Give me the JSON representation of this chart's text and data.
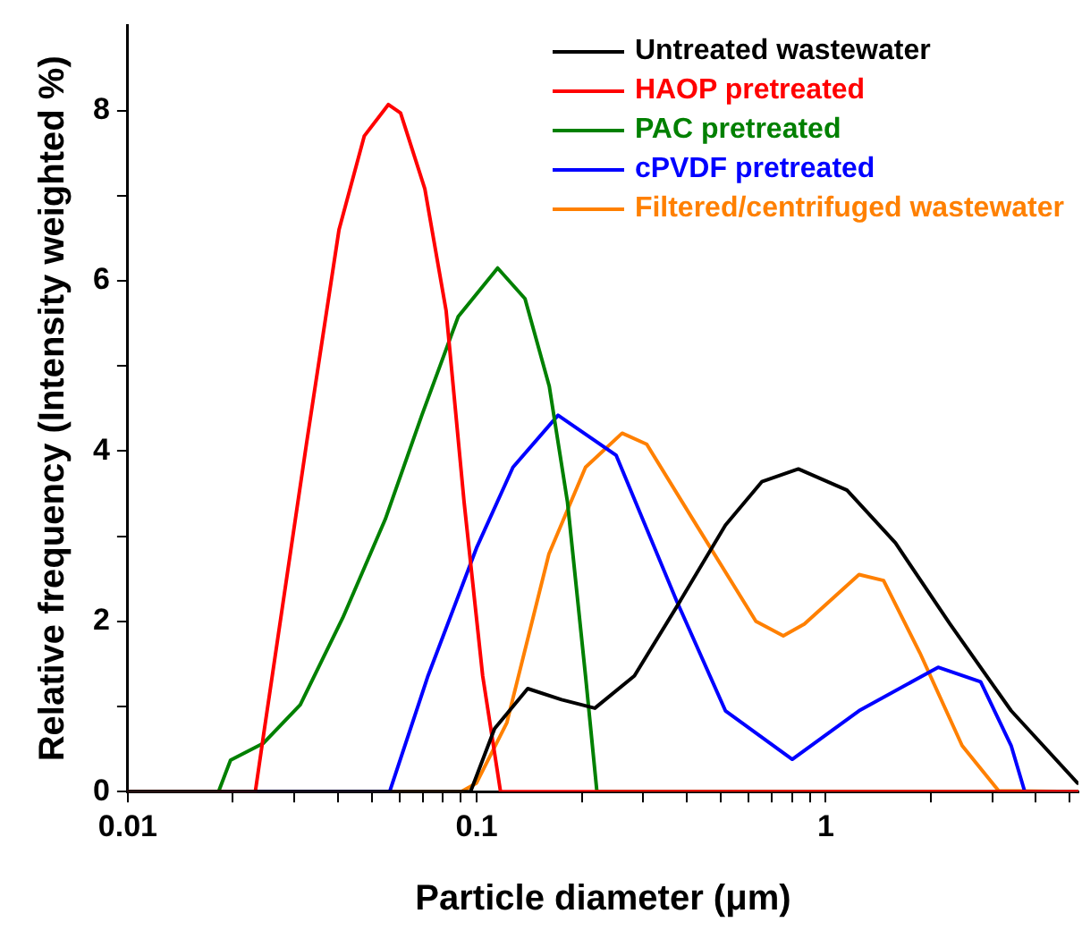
{
  "chart_data": {
    "type": "line",
    "xlabel": "Particle diameter (μm)",
    "ylabel": "Relative frequency (Intensity weighted %)",
    "log": "x",
    "xlim": [
      0.01,
      5.3
    ],
    "ylim": [
      0,
      9
    ],
    "xticks": [
      0.01,
      {
        "value": 0.02,
        "label": null
      },
      {
        "value": 0.03,
        "label": null
      },
      {
        "value": 0.04,
        "label": null
      },
      {
        "value": 0.05,
        "label": null
      },
      {
        "value": 0.06,
        "label": null
      },
      {
        "value": 0.07,
        "label": null
      },
      {
        "value": 0.08,
        "label": null
      },
      {
        "value": 0.09,
        "label": null
      },
      0.1,
      {
        "value": 0.2,
        "label": null
      },
      {
        "value": 0.3,
        "label": null
      },
      {
        "value": 0.4,
        "label": null
      },
      {
        "value": 0.5,
        "label": null
      },
      {
        "value": 0.6,
        "label": null
      },
      {
        "value": 0.7,
        "label": null
      },
      {
        "value": 0.8,
        "label": null
      },
      {
        "value": 0.9,
        "label": null
      },
      1,
      {
        "value": 2,
        "label": null
      },
      {
        "value": 3,
        "label": null
      },
      {
        "value": 4,
        "label": null
      },
      {
        "value": 5,
        "label": null
      }
    ],
    "yticks": [
      0,
      {
        "value": 1,
        "label": null
      },
      2,
      {
        "value": 3,
        "label": null
      },
      4,
      {
        "value": 5,
        "label": null
      },
      6,
      {
        "value": 7,
        "label": null
      },
      8
    ],
    "grid": false,
    "legend": "top right",
    "marker": "none",
    "line_style": "solid",
    "series": [
      {
        "name": "Untreated wastewater",
        "color": "#000000",
        "x": [
          0.01,
          0.096,
          0.1125,
          0.14,
          0.175,
          0.218,
          0.283,
          0.374,
          0.516,
          0.656,
          0.835,
          1.151,
          1.585,
          2.27,
          3.4,
          5.27
        ],
        "values": [
          0,
          0,
          0.74,
          1.21,
          1.08,
          0.98,
          1.36,
          2.17,
          3.13,
          3.64,
          3.79,
          3.54,
          2.92,
          1.97,
          0.95,
          0.1
        ]
      },
      {
        "name": "HAOP pretreated",
        "color": "#ff0000",
        "x": [
          0.01,
          0.0232,
          0.0245,
          0.0325,
          0.0403,
          0.0476,
          0.0558,
          0.0605,
          0.071,
          0.0817,
          0.092,
          0.104,
          0.117,
          5.3
        ],
        "values": [
          0,
          0,
          0.67,
          4.08,
          6.6,
          7.7,
          8.07,
          7.97,
          7.08,
          5.65,
          3.4,
          1.36,
          0,
          0
        ]
      },
      {
        "name": "PAC pretreated",
        "color": "#008000",
        "x": [
          0.01,
          0.0182,
          0.0197,
          0.0245,
          0.0312,
          0.0413,
          0.0547,
          0.0696,
          0.0885,
          0.1148,
          0.1375,
          0.1614,
          0.182,
          0.205,
          0.221,
          5.3
        ],
        "values": [
          0,
          0,
          0.37,
          0.57,
          1.02,
          2.04,
          3.2,
          4.42,
          5.58,
          6.15,
          5.79,
          4.76,
          3.4,
          1.36,
          0,
          0
        ]
      },
      {
        "name": "cPVDF pretreated",
        "color": "#0000ff",
        "x": [
          0.01,
          0.0563,
          0.0725,
          0.0998,
          0.127,
          0.171,
          0.251,
          0.374,
          0.516,
          0.802,
          1.246,
          2.1,
          2.78,
          3.4,
          3.72,
          5.3
        ],
        "values": [
          0,
          0,
          1.36,
          2.86,
          3.81,
          4.42,
          3.95,
          2.24,
          0.95,
          0.38,
          0.95,
          1.46,
          1.29,
          0.54,
          0,
          0
        ]
      },
      {
        "name": "Filtered/centrifuged wastewater",
        "color": "#ff8000",
        "x": [
          0.01,
          0.0903,
          0.0998,
          0.122,
          0.161,
          0.205,
          0.261,
          0.307,
          0.406,
          0.631,
          0.756,
          0.869,
          1.246,
          1.465,
          1.862,
          2.46,
          3.13,
          5.3
        ],
        "values": [
          0,
          0,
          0.1,
          0.81,
          2.79,
          3.81,
          4.21,
          4.08,
          3.27,
          2.0,
          1.83,
          1.97,
          2.55,
          2.48,
          1.63,
          0.54,
          0.01,
          0
        ]
      }
    ]
  }
}
